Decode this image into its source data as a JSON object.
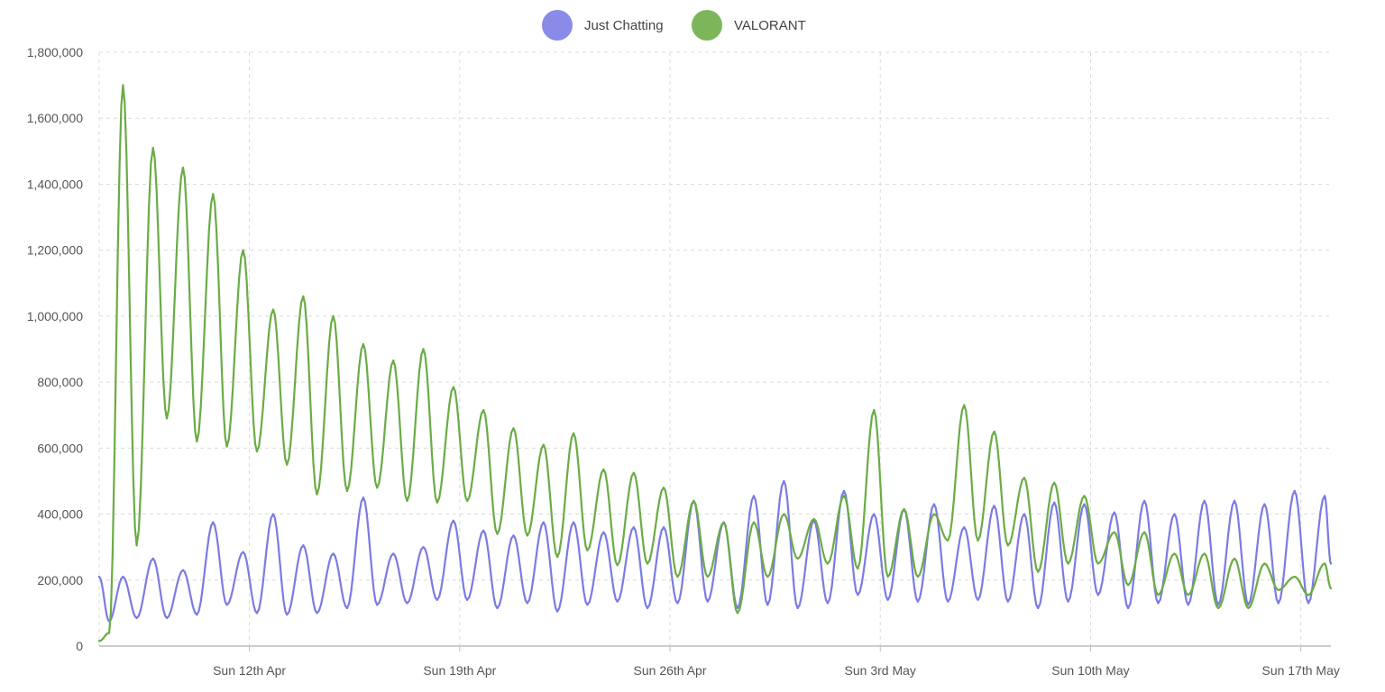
{
  "chart_data": {
    "type": "line",
    "title": "",
    "xlabel": "",
    "ylabel": "",
    "grid": true,
    "legend_position": "top-center",
    "ylim": [
      0,
      1800000
    ],
    "xlim": [
      "2020-04-07T00:00",
      "2020-05-18T00:00"
    ],
    "y_ticks": [
      {
        "value": 0,
        "label": "0"
      },
      {
        "value": 200000,
        "label": "200,000"
      },
      {
        "value": 400000,
        "label": "400,000"
      },
      {
        "value": 600000,
        "label": "600,000"
      },
      {
        "value": 800000,
        "label": "800,000"
      },
      {
        "value": 1000000,
        "label": "1,000,000"
      },
      {
        "value": 1200000,
        "label": "1,200,000"
      },
      {
        "value": 1400000,
        "label": "1,400,000"
      },
      {
        "value": 1600000,
        "label": "1,600,000"
      },
      {
        "value": 1800000,
        "label": "1,800,000"
      }
    ],
    "x_ticks": [
      {
        "value": "2020-04-12T00:00",
        "label": "Sun 12th Apr"
      },
      {
        "value": "2020-04-19T00:00",
        "label": "Sun 19th Apr"
      },
      {
        "value": "2020-04-26T00:00",
        "label": "Sun 26th Apr"
      },
      {
        "value": "2020-05-03T00:00",
        "label": "Sun 3rd May"
      },
      {
        "value": "2020-05-10T00:00",
        "label": "Sun 10th May"
      },
      {
        "value": "2020-05-17T00:00",
        "label": "Sun 17th May"
      }
    ],
    "x": [
      "2020-04-07T00:00",
      "2020-04-07T08:00",
      "2020-04-07T19:00",
      "2020-04-08T06:00",
      "2020-04-08T19:00",
      "2020-04-09T06:00",
      "2020-04-09T19:00",
      "2020-04-10T06:00",
      "2020-04-10T19:00",
      "2020-04-11T06:00",
      "2020-04-11T19:00",
      "2020-04-12T06:00",
      "2020-04-12T19:00",
      "2020-04-13T06:00",
      "2020-04-13T19:00",
      "2020-04-14T06:00",
      "2020-04-14T19:00",
      "2020-04-15T06:00",
      "2020-04-15T19:00",
      "2020-04-16T06:00",
      "2020-04-16T19:00",
      "2020-04-17T06:00",
      "2020-04-17T19:00",
      "2020-04-18T06:00",
      "2020-04-18T19:00",
      "2020-04-19T06:00",
      "2020-04-19T19:00",
      "2020-04-20T06:00",
      "2020-04-20T19:00",
      "2020-04-21T06:00",
      "2020-04-21T19:00",
      "2020-04-22T06:00",
      "2020-04-22T19:00",
      "2020-04-23T06:00",
      "2020-04-23T19:00",
      "2020-04-24T06:00",
      "2020-04-24T19:00",
      "2020-04-25T06:00",
      "2020-04-25T19:00",
      "2020-04-26T06:00",
      "2020-04-26T19:00",
      "2020-04-27T06:00",
      "2020-04-27T19:00",
      "2020-04-28T06:00",
      "2020-04-28T19:00",
      "2020-04-29T06:00",
      "2020-04-29T19:00",
      "2020-04-30T06:00",
      "2020-04-30T19:00",
      "2020-05-01T06:00",
      "2020-05-01T19:00",
      "2020-05-02T06:00",
      "2020-05-02T19:00",
      "2020-05-03T06:00",
      "2020-05-03T19:00",
      "2020-05-04T06:00",
      "2020-05-04T19:00",
      "2020-05-05T06:00",
      "2020-05-05T19:00",
      "2020-05-06T06:00",
      "2020-05-06T19:00",
      "2020-05-07T06:00",
      "2020-05-07T19:00",
      "2020-05-08T06:00",
      "2020-05-08T19:00",
      "2020-05-09T06:00",
      "2020-05-09T19:00",
      "2020-05-10T06:00",
      "2020-05-10T19:00",
      "2020-05-11T06:00",
      "2020-05-11T19:00",
      "2020-05-12T06:00",
      "2020-05-12T19:00",
      "2020-05-13T06:00",
      "2020-05-13T19:00",
      "2020-05-14T06:00",
      "2020-05-14T19:00",
      "2020-05-15T06:00",
      "2020-05-15T19:00",
      "2020-05-16T06:00",
      "2020-05-16T19:00",
      "2020-05-17T06:00",
      "2020-05-17T19:00",
      "2020-05-18T00:00"
    ],
    "series": [
      {
        "name": "Just Chatting",
        "color": "#7b7be3",
        "legend_color": "#8a8ae8",
        "values": [
          210000,
          75000,
          210000,
          85000,
          265000,
          85000,
          230000,
          95000,
          375000,
          125000,
          285000,
          100000,
          400000,
          95000,
          305000,
          100000,
          280000,
          115000,
          450000,
          125000,
          280000,
          130000,
          300000,
          140000,
          380000,
          140000,
          350000,
          115000,
          335000,
          130000,
          375000,
          105000,
          375000,
          125000,
          345000,
          135000,
          360000,
          115000,
          360000,
          130000,
          440000,
          135000,
          375000,
          115000,
          455000,
          125000,
          500000,
          115000,
          380000,
          130000,
          470000,
          155000,
          400000,
          140000,
          415000,
          135000,
          430000,
          135000,
          360000,
          140000,
          425000,
          135000,
          400000,
          115000,
          435000,
          135000,
          430000,
          155000,
          405000,
          115000,
          440000,
          130000,
          400000,
          125000,
          440000,
          125000,
          440000,
          125000,
          430000,
          130000,
          470000,
          130000,
          455000,
          250000
        ]
      },
      {
        "name": "VALORANT",
        "color": "#6aac45",
        "legend_color": "#7cb55a",
        "values": [
          15000,
          40000,
          1700000,
          305000,
          1510000,
          690000,
          1450000,
          620000,
          1370000,
          605000,
          1200000,
          590000,
          1020000,
          550000,
          1060000,
          460000,
          1000000,
          470000,
          915000,
          480000,
          865000,
          440000,
          900000,
          435000,
          785000,
          440000,
          715000,
          340000,
          660000,
          335000,
          610000,
          270000,
          645000,
          290000,
          535000,
          245000,
          525000,
          250000,
          480000,
          210000,
          440000,
          210000,
          375000,
          100000,
          375000,
          210000,
          400000,
          265000,
          385000,
          250000,
          455000,
          235000,
          715000,
          210000,
          415000,
          210000,
          400000,
          320000,
          730000,
          320000,
          650000,
          305000,
          510000,
          225000,
          495000,
          250000,
          455000,
          250000,
          345000,
          185000,
          345000,
          155000,
          280000,
          155000,
          280000,
          115000,
          265000,
          115000,
          250000,
          170000,
          210000,
          155000,
          250000,
          175000
        ]
      }
    ]
  }
}
